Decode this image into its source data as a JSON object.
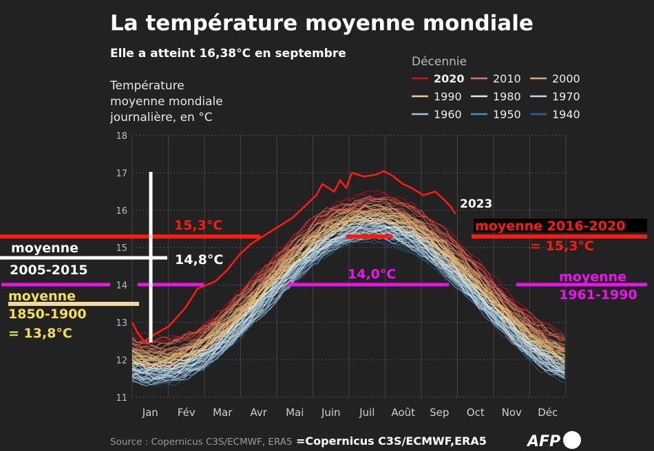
{
  "title": "La température moyenne mondiale",
  "subtitle": "Elle a atteint 16,38°C en septembre",
  "ylabel_lines": [
    "Température",
    "moyenne mondiale",
    "journalière, en °C"
  ],
  "legend": {
    "title": "Décennie",
    "items": [
      {
        "label": "2020",
        "color": "#d0141e"
      },
      {
        "label": "2010",
        "color": "#e07a5f"
      },
      {
        "label": "2000",
        "color": "#e8a66a"
      },
      {
        "label": "1990",
        "color": "#e6d490"
      },
      {
        "label": "1980",
        "color": "#efe8d6"
      },
      {
        "label": "1970",
        "color": "#d4d8d6"
      },
      {
        "label": "1960",
        "color": "#a6c6d2"
      },
      {
        "label": "1950",
        "color": "#4a90c0"
      },
      {
        "label": "1940",
        "color": "#2f5f9a"
      }
    ]
  },
  "source": "Source : Copernicus C3S/ECMWF, ERA5",
  "source_overlay": "=Copernicus C3S/ECMWF,ERA5",
  "logo": "AFP",
  "chart_data": {
    "type": "line",
    "title": "La température moyenne mondiale",
    "ylabel": "Température moyenne mondiale journalière, en °C",
    "ylim": [
      11,
      18
    ],
    "yticks": [
      "11",
      "12",
      "13",
      "14",
      "15",
      "16",
      "17",
      "18"
    ],
    "xticks": [
      "Jan",
      "Fév",
      "Mar",
      "Avr",
      "Mai",
      "Juin",
      "Juil",
      "Août",
      "Sep",
      "Oct",
      "Nov",
      "Déc"
    ],
    "grid": true,
    "legend_position": "top-right",
    "decade_anomalies": {
      "1940": -0.3,
      "1950": -0.3,
      "1960": -0.25,
      "1970": -0.15,
      "1980": 0.0,
      "1990": 0.15,
      "2000": 0.3,
      "2010": 0.5,
      "2020": 0.75
    },
    "highlight_series": {
      "name": "2023",
      "points_day_temp": [
        [
          0,
          13.0
        ],
        [
          5,
          12.7
        ],
        [
          10,
          12.5
        ],
        [
          20,
          12.7
        ],
        [
          31,
          12.9
        ],
        [
          45,
          13.4
        ],
        [
          55,
          13.9
        ],
        [
          70,
          14.1
        ],
        [
          80,
          14.4
        ],
        [
          90,
          14.8
        ],
        [
          100,
          15.1
        ],
        [
          110,
          15.3
        ],
        [
          120,
          15.5
        ],
        [
          135,
          15.8
        ],
        [
          145,
          16.1
        ],
        [
          155,
          16.4
        ],
        [
          160,
          16.7
        ],
        [
          170,
          16.5
        ],
        [
          175,
          16.8
        ],
        [
          180,
          16.6
        ],
        [
          185,
          17.0
        ],
        [
          195,
          16.9
        ],
        [
          205,
          16.95
        ],
        [
          212,
          17.05
        ],
        [
          220,
          16.9
        ],
        [
          228,
          16.7
        ],
        [
          235,
          16.6
        ],
        [
          245,
          16.4
        ],
        [
          255,
          16.5
        ],
        [
          262,
          16.3
        ],
        [
          268,
          16.1
        ],
        [
          272,
          15.9
        ]
      ]
    },
    "annotations": {
      "avg_2016_2020": {
        "value": 15.3,
        "label": "15,3°C",
        "text1": "moyenne 2016-2020",
        "text2": "= 15,3°C"
      },
      "avg_2005_2015": {
        "value": 14.8,
        "label": "14,8°C",
        "text1": "moyenne",
        "text2": "2005-2015"
      },
      "avg_1961_1990": {
        "value": 14.0,
        "label": "14,0°C",
        "text1": "moyenne",
        "text2": "1961-1990"
      },
      "avg_1850_1900": {
        "value": 13.8,
        "text1": "moyenne",
        "text2": "1850-1900",
        "text3": "= 13,8°C"
      },
      "label_2023": "2023"
    }
  }
}
